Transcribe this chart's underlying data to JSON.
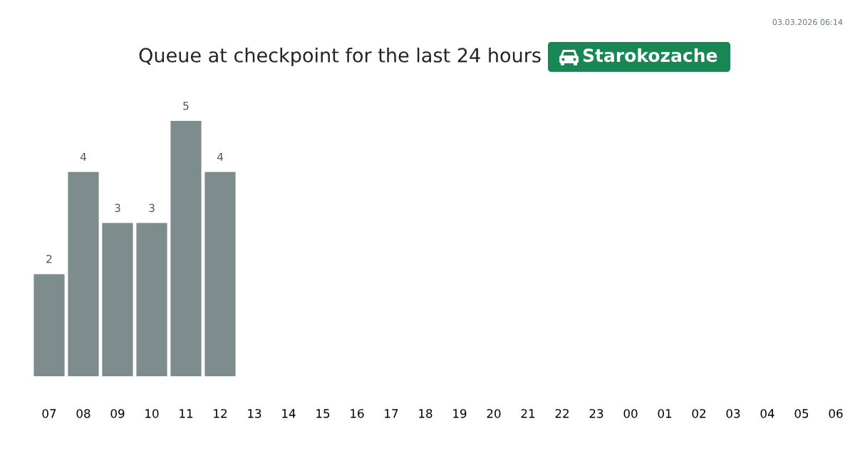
{
  "chart_data": {
    "type": "bar",
    "title": "Queue at checkpoint for the last 24 hours",
    "subtitle": "Starokozache",
    "categories": [
      "07",
      "08",
      "09",
      "10",
      "11",
      "12",
      "13",
      "14",
      "15",
      "16",
      "17",
      "18",
      "19",
      "20",
      "21",
      "22",
      "23",
      "00",
      "01",
      "02",
      "03",
      "04",
      "05",
      "06"
    ],
    "values": [
      2,
      4,
      3,
      3,
      5,
      4,
      null,
      null,
      null,
      null,
      null,
      null,
      null,
      null,
      null,
      null,
      null,
      null,
      null,
      null,
      null,
      null,
      null,
      null
    ],
    "color": "#7f8c8d",
    "data_labels": true,
    "tick_labels": "x",
    "grid": false,
    "annotations": [
      "03.03.2026 06:14"
    ]
  }
}
